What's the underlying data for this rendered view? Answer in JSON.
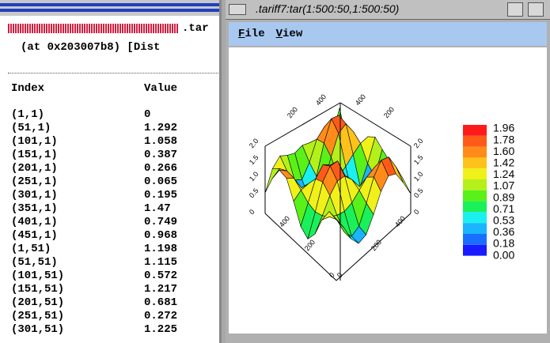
{
  "left_window": {
    "header": ".tar",
    "address_line": "(at 0x203007b8) [Dist",
    "table": {
      "columns": [
        "Index",
        "Value"
      ],
      "rows": [
        [
          "(1,1)",
          "0"
        ],
        [
          "(51,1)",
          "1.292"
        ],
        [
          "(101,1)",
          "1.058"
        ],
        [
          "(151,1)",
          "0.387"
        ],
        [
          "(201,1)",
          "0.266"
        ],
        [
          "(251,1)",
          "0.065"
        ],
        [
          "(301,1)",
          "0.195"
        ],
        [
          "(351,1)",
          "1.47"
        ],
        [
          "(401,1)",
          "0.749"
        ],
        [
          "(451,1)",
          "0.968"
        ],
        [
          "(1,51)",
          "1.198"
        ],
        [
          "(51,51)",
          "1.115"
        ],
        [
          "(101,51)",
          "0.572"
        ],
        [
          "(151,51)",
          "1.217"
        ],
        [
          "(201,51)",
          "0.681"
        ],
        [
          "(251,51)",
          "0.272"
        ],
        [
          "(301,51)",
          "1.225"
        ]
      ]
    }
  },
  "right_window": {
    "title": ".tariff7:tar(1:500:50,1:500:50)",
    "menu": [
      "File",
      "View"
    ],
    "plot": {
      "colorbar": {
        "labels": [
          "1.96",
          "1.78",
          "1.60",
          "1.42",
          "1.24",
          "1.07",
          "0.89",
          "0.71",
          "0.53",
          "0.36",
          "0.18",
          "0.00"
        ],
        "colors": [
          "#ff1a1a",
          "#ff5a1a",
          "#ff8c1a",
          "#ffc21a",
          "#f0f01a",
          "#b4f01a",
          "#5af01a",
          "#1af05a",
          "#1af0f0",
          "#1ab4ff",
          "#1a6eff",
          "#1a1aff"
        ]
      },
      "axis_ticks": {
        "left_z": [
          "2.0",
          "1.5",
          "1.0",
          "0.5",
          "0"
        ],
        "right_z": [
          "2.0",
          "1.5",
          "1.0",
          "0.5",
          "0"
        ],
        "back_left": [
          "400",
          "200"
        ],
        "back_right": [
          "400",
          "200"
        ],
        "front_left": [
          "400",
          "200"
        ],
        "front_right": [
          "400",
          "200"
        ],
        "front": [
          "0",
          "0"
        ]
      }
    }
  }
}
